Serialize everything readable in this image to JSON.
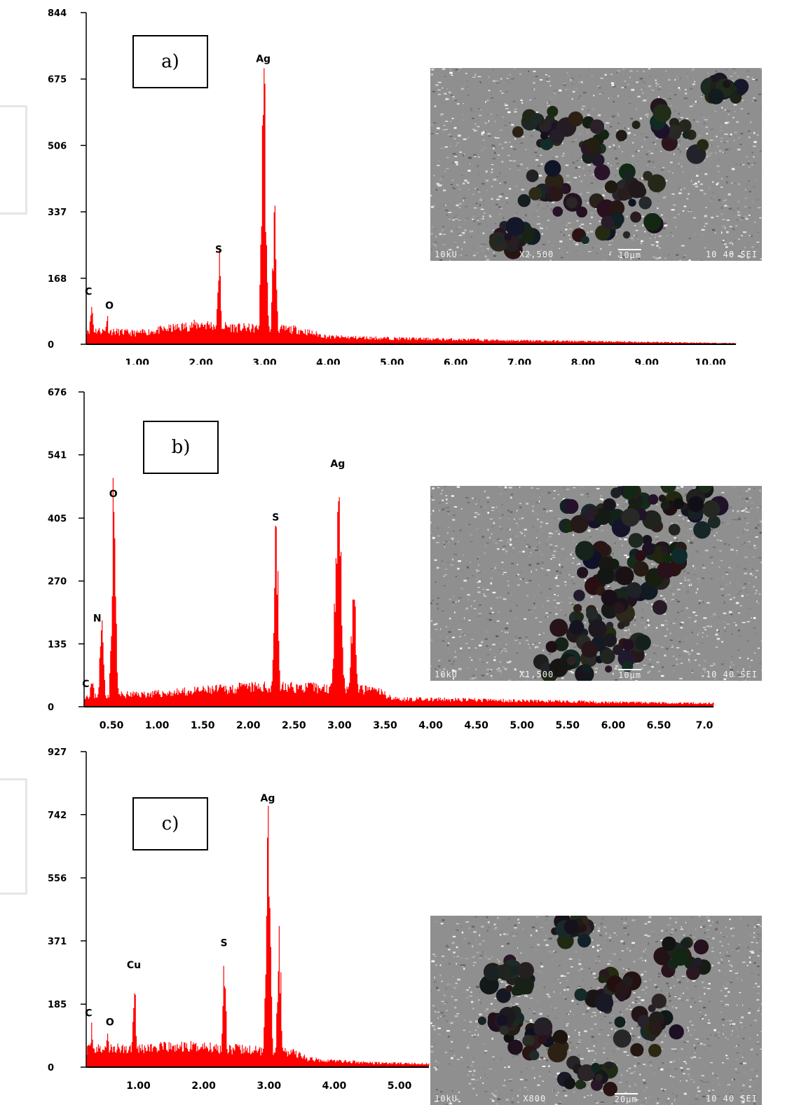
{
  "chart_data": [
    {
      "type": "bar",
      "panel_label": "a)",
      "y_ticks": [
        "844",
        "675",
        "506",
        "337",
        "168",
        "0"
      ],
      "ylim": [
        0,
        844
      ],
      "x_ticks": [
        "1.00",
        "2.00",
        "3.00",
        "4.00",
        "5.00",
        "6.00",
        "7.00",
        "8.00",
        "9.00",
        "10.00"
      ],
      "xlim": [
        0.2,
        10.4
      ],
      "peaks": [
        {
          "label": "C",
          "x": 0.28,
          "y": 90
        },
        {
          "label": "O",
          "x": 0.52,
          "y": 62
        },
        {
          "label": "S",
          "x": 2.28,
          "y": 215
        },
        {
          "label": "Ag",
          "x": 2.98,
          "y": 700
        }
      ],
      "secondary_peaks": [
        {
          "x": 3.15,
          "y": 315
        }
      ],
      "baseline": [
        [
          0.2,
          40
        ],
        [
          1.0,
          30
        ],
        [
          2.0,
          55
        ],
        [
          2.6,
          45
        ],
        [
          3.5,
          40
        ],
        [
          4.0,
          20
        ],
        [
          5.0,
          16
        ],
        [
          7.0,
          10
        ],
        [
          9.0,
          6
        ],
        [
          10.4,
          3
        ]
      ],
      "sem_image": {
        "kv": "10kU",
        "magnification": "X2,500",
        "scale": "10μm",
        "code": "10 40 SEI"
      }
    },
    {
      "type": "bar",
      "panel_label": "b)",
      "y_ticks": [
        "676",
        "541",
        "405",
        "270",
        "135",
        "0"
      ],
      "ylim": [
        0,
        676
      ],
      "x_ticks": [
        "0.50",
        "1.00",
        "1.50",
        "2.00",
        "2.50",
        "3.00",
        "3.50",
        "4.00",
        "4.50",
        "5.00",
        "5.50",
        "6.00",
        "6.50",
        "7.0"
      ],
      "xlim": [
        0.2,
        7.1
      ],
      "peaks": [
        {
          "label": "C",
          "x": 0.28,
          "y": 45
        },
        {
          "label": "N",
          "x": 0.39,
          "y": 165
        },
        {
          "label": "O",
          "x": 0.52,
          "y": 435
        },
        {
          "label": "S",
          "x": 2.3,
          "y": 385
        },
        {
          "label": "Ag",
          "x": 2.98,
          "y": 500
        }
      ],
      "secondary_peaks": [
        {
          "x": 3.15,
          "y": 210
        }
      ],
      "baseline": [
        [
          0.2,
          25
        ],
        [
          1.0,
          30
        ],
        [
          2.0,
          45
        ],
        [
          2.6,
          45
        ],
        [
          3.4,
          38
        ],
        [
          3.6,
          18
        ],
        [
          5.0,
          14
        ],
        [
          6.0,
          10
        ],
        [
          7.1,
          8
        ]
      ],
      "sem_image": {
        "kv": "10kU",
        "magnification": "X1,500",
        "scale": "10μm",
        "code": "10 40 SEI"
      }
    },
    {
      "type": "bar",
      "panel_label": "c)",
      "y_ticks": [
        "927",
        "742",
        "556",
        "371",
        "185",
        "0"
      ],
      "ylim": [
        0,
        927
      ],
      "x_ticks": [
        "1.00",
        "2.00",
        "3.00",
        "4.00",
        "5.00"
      ],
      "xlim": [
        0.2,
        5.45
      ],
      "peaks": [
        {
          "label": "C",
          "x": 0.28,
          "y": 108
        },
        {
          "label": "O",
          "x": 0.52,
          "y": 90
        },
        {
          "label": "Cu",
          "x": 0.93,
          "y": 270
        },
        {
          "label": "S",
          "x": 2.31,
          "y": 335
        },
        {
          "label": "Ag",
          "x": 2.98,
          "y": 760
        }
      ],
      "secondary_peaks": [
        {
          "x": 3.15,
          "y": 345
        }
      ],
      "baseline": [
        [
          0.2,
          55
        ],
        [
          1.0,
          60
        ],
        [
          2.0,
          65
        ],
        [
          2.6,
          55
        ],
        [
          3.4,
          45
        ],
        [
          3.6,
          25
        ],
        [
          4.5,
          14
        ],
        [
          5.45,
          10
        ]
      ],
      "sem_image": {
        "kv": "10kU",
        "magnification": "X800",
        "scale": "20μm",
        "code": "10 40 SEI"
      }
    }
  ]
}
